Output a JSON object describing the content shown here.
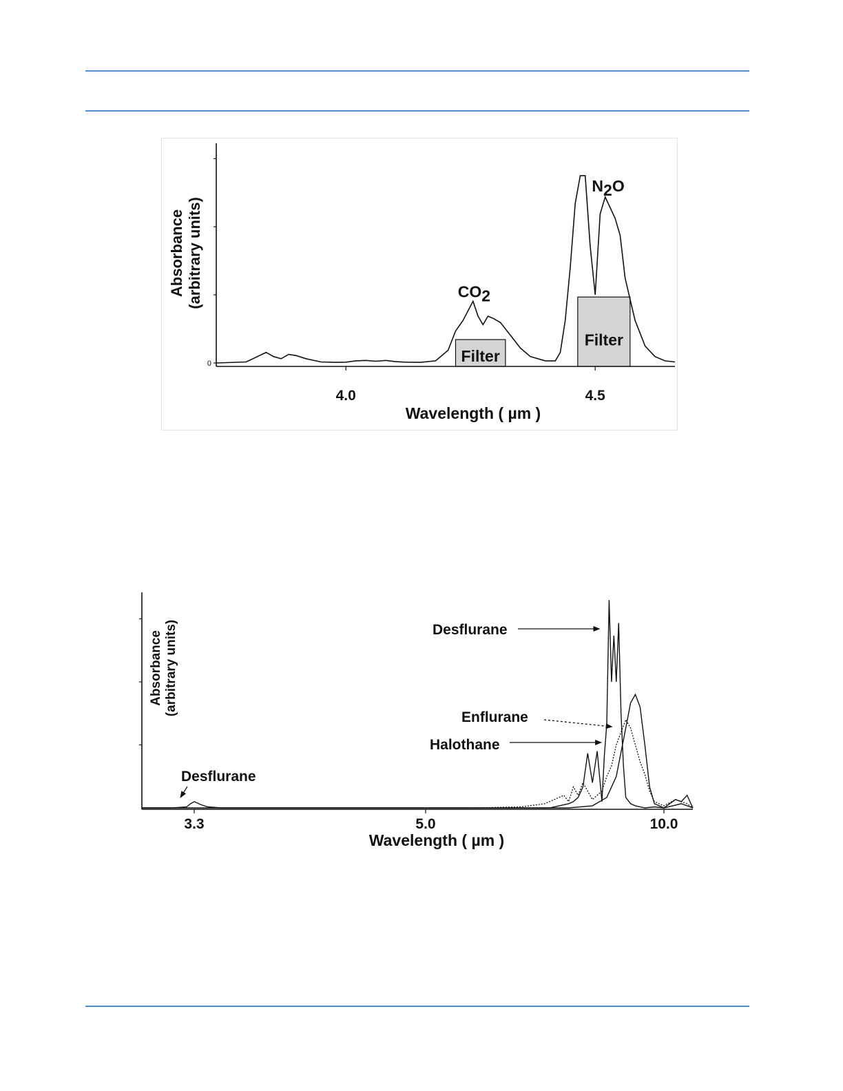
{
  "page": {
    "rule_color": "#4a90e2"
  },
  "figure1": {
    "chart_data": {
      "type": "line",
      "title": "",
      "xlabel": "Wavelength ( µm )",
      "ylabel_line1": "Absorbance",
      "ylabel_line2": "(arbitrary units)",
      "xlim": [
        3.74,
        4.66
      ],
      "ylim": [
        0,
        1.0
      ],
      "x_ticks": [
        {
          "value": 4.0,
          "label": "4.0"
        },
        {
          "value": 4.5,
          "label": "4.5"
        }
      ],
      "y_zero_label": "0",
      "series": [
        {
          "x": [
            3.74,
            3.8,
            3.84,
            3.855,
            3.87,
            3.885,
            3.9,
            3.92,
            3.95,
            3.98,
            4.0,
            4.02,
            4.04,
            4.06,
            4.08,
            4.1,
            4.12,
            4.15,
            4.18,
            4.205,
            4.22,
            4.235,
            4.255,
            4.265,
            4.275,
            4.285,
            4.295,
            4.31,
            4.33,
            4.35,
            4.37,
            4.4,
            4.42,
            4.43,
            4.44,
            4.45,
            4.46,
            4.47,
            4.48,
            4.49,
            4.5,
            4.51,
            4.52,
            4.53,
            4.54,
            4.55,
            4.56,
            4.57,
            4.58,
            4.6,
            4.62,
            4.64,
            4.66
          ],
          "y": [
            0,
            0.005,
            0.05,
            0.03,
            0.02,
            0.04,
            0.035,
            0.02,
            0.005,
            0.003,
            0.004,
            0.01,
            0.012,
            0.008,
            0.012,
            0.006,
            0.004,
            0.003,
            0.01,
            0.06,
            0.15,
            0.2,
            0.29,
            0.22,
            0.18,
            0.22,
            0.21,
            0.19,
            0.13,
            0.07,
            0.03,
            0.01,
            0.01,
            0.05,
            0.2,
            0.45,
            0.75,
            0.88,
            0.88,
            0.55,
            0.32,
            0.7,
            0.78,
            0.73,
            0.68,
            0.6,
            0.4,
            0.3,
            0.2,
            0.08,
            0.03,
            0.01,
            0.005
          ]
        }
      ],
      "annotations": [
        {
          "text": "CO",
          "subscript": "2",
          "x": 4.23,
          "y": 0.29
        },
        {
          "text": "N",
          "subscript": "2",
          "suffix": "O",
          "x": 4.51,
          "y": 0.8
        }
      ],
      "filter_bands": [
        {
          "label": "Filter",
          "x0": 4.22,
          "x1": 4.32,
          "y": 0.11
        },
        {
          "label": "Filter",
          "x0": 4.465,
          "x1": 4.57,
          "y": 0.31
        }
      ]
    }
  },
  "figure2": {
    "chart_data": {
      "type": "line",
      "title": "",
      "xlabel": "Wavelength ( µm )",
      "ylabel_line1": "Absorbance",
      "ylabel_line2": "(arbitrary units)",
      "x_ticks": [
        {
          "value": 3.3,
          "label": "3.3"
        },
        {
          "value": 5.0,
          "label": "5.0"
        },
        {
          "value": 10.0,
          "label": "10.0"
        }
      ],
      "ylim": [
        0,
        1.0
      ],
      "series": [
        {
          "line": "solid",
          "x": [
            2.6,
            3.0,
            3.2,
            3.25,
            3.3,
            3.35,
            3.4,
            3.5,
            4.0,
            5.0,
            6.0,
            7.0,
            7.6,
            7.8,
            8.0,
            8.1,
            8.2,
            8.3,
            8.4,
            8.5,
            8.6,
            8.7,
            8.75,
            8.8,
            8.85,
            8.9,
            8.95,
            9.0,
            9.05,
            9.1,
            9.15,
            9.2,
            9.3,
            9.4,
            9.6,
            9.8,
            10.0,
            10.3,
            10.5
          ],
          "y": [
            0.0,
            0.0,
            0.005,
            0.02,
            0.03,
            0.015,
            0.005,
            0.0,
            0.0,
            0.0,
            0.0,
            0.0,
            0.0,
            0.01,
            0.02,
            0.03,
            0.05,
            0.1,
            0.26,
            0.12,
            0.27,
            0.03,
            0.25,
            0.4,
            0.99,
            0.6,
            0.82,
            0.6,
            0.88,
            0.45,
            0.2,
            0.05,
            0.02,
            0.01,
            0.0,
            0.005,
            0.0,
            0.02,
            0.0
          ]
        },
        {
          "line": "dotted",
          "x": [
            2.6,
            3.5,
            5.0,
            6.0,
            7.0,
            7.5,
            7.9,
            8.0,
            8.1,
            8.2,
            8.3,
            8.5,
            8.7,
            8.8,
            8.9,
            9.0,
            9.1,
            9.2,
            9.3,
            9.4,
            9.5,
            9.6,
            9.7,
            9.8,
            10.0,
            10.2,
            10.4,
            10.5
          ],
          "y": [
            0.0,
            0.0,
            0.0,
            0.0,
            0.005,
            0.02,
            0.06,
            0.03,
            0.1,
            0.06,
            0.12,
            0.04,
            0.08,
            0.15,
            0.2,
            0.3,
            0.36,
            0.42,
            0.38,
            0.3,
            0.22,
            0.16,
            0.08,
            0.03,
            0.01,
            0.04,
            0.02,
            0.0
          ]
        },
        {
          "line": "solid",
          "x": [
            2.6,
            5.0,
            8.0,
            8.5,
            8.8,
            9.0,
            9.2,
            9.3,
            9.4,
            9.5,
            9.6,
            9.7,
            9.8,
            9.9,
            10.0,
            10.1,
            10.2,
            10.3,
            10.4,
            10.5
          ],
          "y": [
            0.0,
            0.0,
            0.0,
            0.01,
            0.05,
            0.15,
            0.38,
            0.5,
            0.54,
            0.48,
            0.3,
            0.1,
            0.02,
            0.01,
            0.0,
            0.02,
            0.04,
            0.03,
            0.06,
            0.0
          ]
        }
      ],
      "annotations": [
        {
          "text": "Desflurane",
          "x": 3.3,
          "y": 0.03
        },
        {
          "text": "Desflurane",
          "x": 8.85,
          "y": 0.85
        },
        {
          "text": "Enflurane",
          "x": 9.2,
          "y": 0.38
        },
        {
          "text": "Halothane",
          "x": 8.6,
          "y": 0.25
        }
      ]
    }
  }
}
